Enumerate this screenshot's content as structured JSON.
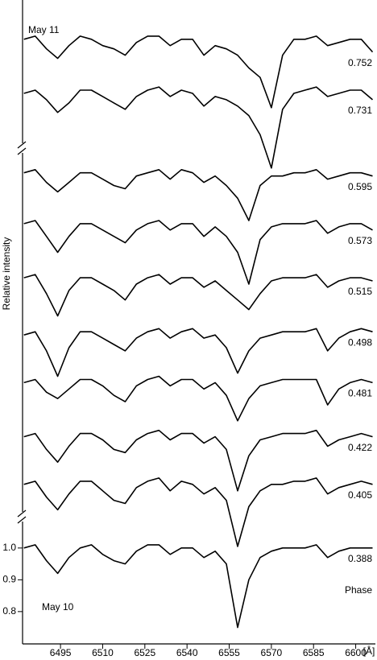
{
  "chart_data": {
    "type": "line",
    "ylabel": "Relative intensity",
    "xlabel": "[Å]",
    "annotations": [
      "May 11",
      "May 10",
      "Phase"
    ],
    "x": [
      6482,
      6486,
      6490,
      6494,
      6498,
      6502,
      6506,
      6510,
      6514,
      6518,
      6522,
      6526,
      6530,
      6534,
      6538,
      6542,
      6546,
      6550,
      6554,
      6558,
      6562,
      6566,
      6570,
      6574,
      6578,
      6582,
      6586,
      6590,
      6594,
      6598,
      6602,
      6606
    ],
    "xlim": [
      6481.5,
      6607
    ],
    "xticks": [
      6495,
      6510,
      6525,
      6540,
      6555,
      6570,
      6585,
      6600
    ],
    "ylim": [
      0.69,
      2.69
    ],
    "yticks": [
      0.8,
      0.9,
      {
        "value": 1,
        "label": "1.0"
      }
    ],
    "color": "#000000",
    "series": [
      {
        "name": "0.752",
        "values": [
          2.6,
          2.61,
          2.57,
          2.54,
          2.58,
          2.61,
          2.6,
          2.58,
          2.57,
          2.55,
          2.59,
          2.61,
          2.61,
          2.58,
          2.6,
          2.6,
          2.55,
          2.58,
          2.57,
          2.55,
          2.51,
          2.48,
          2.385,
          2.55,
          2.6,
          2.6,
          2.61,
          2.58,
          2.59,
          2.6,
          2.6,
          2.56
        ]
      },
      {
        "name": "0.731",
        "values": [
          2.43,
          2.44,
          2.41,
          2.37,
          2.4,
          2.44,
          2.44,
          2.42,
          2.4,
          2.38,
          2.42,
          2.44,
          2.45,
          2.42,
          2.44,
          2.43,
          2.39,
          2.42,
          2.41,
          2.39,
          2.36,
          2.3,
          2.195,
          2.38,
          2.43,
          2.44,
          2.45,
          2.42,
          2.43,
          2.44,
          2.44,
          2.41
        ]
      },
      {
        "name": "0.595",
        "values": [
          2.18,
          2.19,
          2.15,
          2.12,
          2.15,
          2.18,
          2.18,
          2.16,
          2.14,
          2.13,
          2.17,
          2.18,
          2.19,
          2.16,
          2.19,
          2.18,
          2.15,
          2.17,
          2.14,
          2.1,
          2.03,
          2.14,
          2.17,
          2.17,
          2.18,
          2.18,
          2.19,
          2.16,
          2.17,
          2.18,
          2.18,
          2.17
        ]
      },
      {
        "name": "0.573",
        "values": [
          2.02,
          2.03,
          1.98,
          1.93,
          1.98,
          2.02,
          2.02,
          2.0,
          1.98,
          1.96,
          2.0,
          2.02,
          2.03,
          2.0,
          2.02,
          2.02,
          1.98,
          2.01,
          1.98,
          1.93,
          1.83,
          1.97,
          2.01,
          2.02,
          2.02,
          2.02,
          2.03,
          1.99,
          2.01,
          2.02,
          2.02,
          2.0
        ]
      },
      {
        "name": "0.515",
        "values": [
          1.85,
          1.86,
          1.8,
          1.73,
          1.81,
          1.85,
          1.85,
          1.83,
          1.81,
          1.78,
          1.83,
          1.85,
          1.86,
          1.83,
          1.85,
          1.85,
          1.82,
          1.84,
          1.81,
          1.78,
          1.75,
          1.8,
          1.84,
          1.85,
          1.85,
          1.85,
          1.86,
          1.82,
          1.84,
          1.85,
          1.85,
          1.84
        ]
      },
      {
        "name": "0.498",
        "values": [
          1.67,
          1.68,
          1.62,
          1.54,
          1.63,
          1.68,
          1.68,
          1.66,
          1.64,
          1.62,
          1.66,
          1.68,
          1.69,
          1.66,
          1.68,
          1.69,
          1.66,
          1.67,
          1.63,
          1.55,
          1.62,
          1.66,
          1.67,
          1.68,
          1.68,
          1.68,
          1.69,
          1.62,
          1.66,
          1.68,
          1.69,
          1.68
        ]
      },
      {
        "name": "0.481",
        "values": [
          1.52,
          1.53,
          1.49,
          1.47,
          1.5,
          1.53,
          1.53,
          1.51,
          1.48,
          1.46,
          1.51,
          1.53,
          1.54,
          1.51,
          1.53,
          1.53,
          1.5,
          1.52,
          1.48,
          1.4,
          1.47,
          1.51,
          1.52,
          1.53,
          1.53,
          1.53,
          1.53,
          1.45,
          1.5,
          1.52,
          1.53,
          1.52
        ]
      },
      {
        "name": "0.422",
        "values": [
          1.35,
          1.36,
          1.31,
          1.27,
          1.32,
          1.36,
          1.36,
          1.34,
          1.31,
          1.3,
          1.34,
          1.36,
          1.37,
          1.34,
          1.36,
          1.36,
          1.33,
          1.35,
          1.31,
          1.18,
          1.29,
          1.34,
          1.35,
          1.36,
          1.36,
          1.36,
          1.37,
          1.32,
          1.34,
          1.35,
          1.36,
          1.35
        ]
      },
      {
        "name": "0.405",
        "values": [
          1.2,
          1.21,
          1.16,
          1.12,
          1.17,
          1.21,
          1.21,
          1.18,
          1.15,
          1.14,
          1.19,
          1.21,
          1.22,
          1.18,
          1.21,
          1.2,
          1.17,
          1.19,
          1.15,
          1.005,
          1.13,
          1.18,
          1.2,
          1.2,
          1.21,
          1.21,
          1.22,
          1.17,
          1.19,
          1.2,
          1.21,
          1.2
        ]
      },
      {
        "name": "0.388",
        "values": [
          1.0,
          1.01,
          0.96,
          0.92,
          0.97,
          1.0,
          1.01,
          0.98,
          0.96,
          0.95,
          0.99,
          1.01,
          1.01,
          0.98,
          1.0,
          1.0,
          0.97,
          0.99,
          0.95,
          0.75,
          0.9,
          0.97,
          0.99,
          1.0,
          1.0,
          1.0,
          1.01,
          0.97,
          0.99,
          1.0,
          1.0,
          1.0
        ]
      }
    ]
  }
}
